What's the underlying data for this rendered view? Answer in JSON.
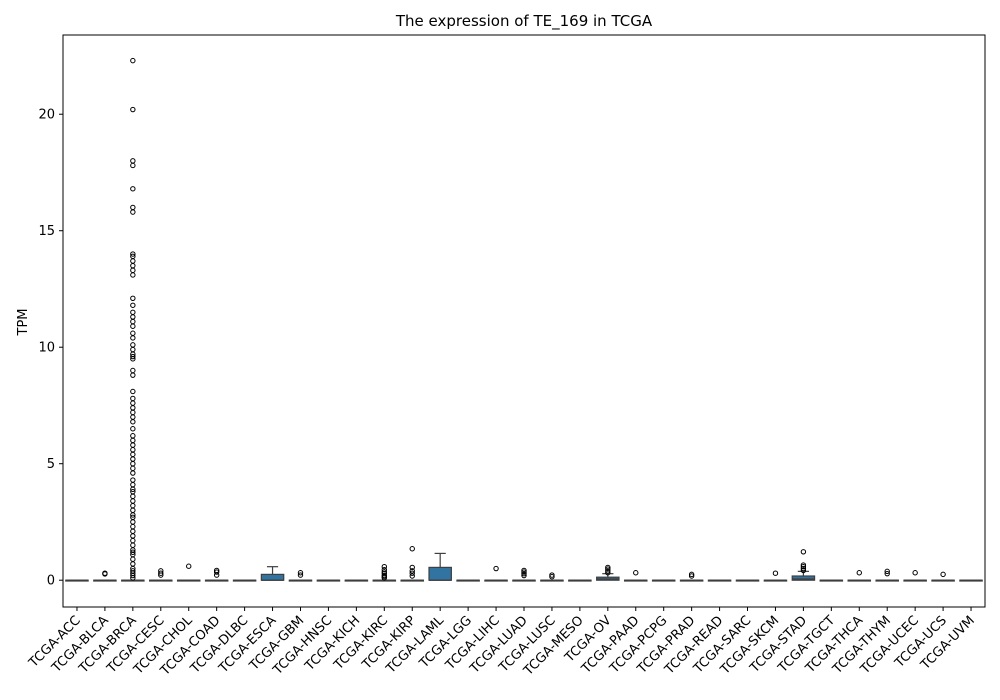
{
  "chart_data": {
    "type": "box",
    "title": "The expression of TE_169 in TCGA",
    "xlabel": "",
    "ylabel": "TPM",
    "ylim": [
      -1.15,
      23.4
    ],
    "yticks": [
      0,
      5,
      10,
      15,
      20
    ],
    "grid": false,
    "box_color": "#3274a1",
    "categories": [
      "TCGA-ACC",
      "TCGA-BLCA",
      "TCGA-BRCA",
      "TCGA-CESC",
      "TCGA-CHOL",
      "TCGA-COAD",
      "TCGA-DLBC",
      "TCGA-ESCA",
      "TCGA-GBM",
      "TCGA-HNSC",
      "TCGA-KICH",
      "TCGA-KIRC",
      "TCGA-KIRP",
      "TCGA-LAML",
      "TCGA-LGG",
      "TCGA-LIHC",
      "TCGA-LUAD",
      "TCGA-LUSC",
      "TCGA-MESO",
      "TCGA-OV",
      "TCGA-PAAD",
      "TCGA-PCPG",
      "TCGA-PRAD",
      "TCGA-READ",
      "TCGA-SARC",
      "TCGA-SKCM",
      "TCGA-STAD",
      "TCGA-TGCT",
      "TCGA-THCA",
      "TCGA-THYM",
      "TCGA-UCEC",
      "TCGA-UCS",
      "TCGA-UVM"
    ],
    "boxes": [
      {
        "q1": 0,
        "median": 0,
        "q3": 0,
        "whislo": 0,
        "whishi": 0,
        "outliers": []
      },
      {
        "q1": 0,
        "median": 0,
        "q3": 0,
        "whislo": 0,
        "whishi": 0,
        "outliers": [
          0.27,
          0.3
        ]
      },
      {
        "q1": 0,
        "median": 0,
        "q3": 0,
        "whislo": 0,
        "whishi": 0,
        "outliers": [
          22.3,
          20.2,
          18,
          17.8,
          16.8,
          16,
          15.8,
          14,
          13.9,
          13.7,
          13.5,
          13.3,
          13.1,
          12.1,
          11.8,
          11.5,
          11.3,
          11.1,
          10.9,
          10.6,
          10.4,
          10.1,
          9.9,
          9.7,
          9.6,
          9.5,
          9.0,
          8.8,
          8.1,
          7.8,
          7.6,
          7.4,
          7.2,
          7.0,
          6.8,
          6.5,
          6.2,
          6.0,
          5.8,
          5.6,
          5.4,
          5.2,
          5.0,
          4.8,
          4.6,
          4.3,
          4.1,
          3.9,
          3.8,
          3.6,
          3.4,
          3.2,
          3.0,
          2.8,
          2.7,
          2.5,
          2.3,
          2.1,
          1.9,
          1.7,
          1.5,
          1.3,
          1.2,
          1.1,
          0.9,
          0.7,
          0.5,
          0.4,
          0.3,
          0.2,
          0.1
        ]
      },
      {
        "q1": 0,
        "median": 0,
        "q3": 0,
        "whislo": 0,
        "whishi": 0,
        "outliers": [
          0.22,
          0.3,
          0.4
        ]
      },
      {
        "q1": 0,
        "median": 0,
        "q3": 0,
        "whislo": 0,
        "whishi": 0,
        "outliers": [
          0.6
        ]
      },
      {
        "q1": 0,
        "median": 0,
        "q3": 0,
        "whislo": 0,
        "whishi": 0,
        "outliers": [
          0.22,
          0.35,
          0.42
        ]
      },
      {
        "q1": 0,
        "median": 0,
        "q3": 0,
        "whislo": 0,
        "whishi": 0,
        "outliers": []
      },
      {
        "q1": 0,
        "median": 0,
        "q3": 0.25,
        "whislo": 0,
        "whishi": 0.58,
        "outliers": []
      },
      {
        "q1": 0,
        "median": 0,
        "q3": 0,
        "whislo": 0,
        "whishi": 0,
        "outliers": [
          0.22,
          0.32
        ]
      },
      {
        "q1": 0,
        "median": 0,
        "q3": 0,
        "whislo": 0,
        "whishi": 0,
        "outliers": []
      },
      {
        "q1": 0,
        "median": 0,
        "q3": 0,
        "whislo": 0,
        "whishi": 0,
        "outliers": []
      },
      {
        "q1": 0,
        "median": 0,
        "q3": 0,
        "whislo": 0,
        "whishi": 0,
        "outliers": [
          0.1,
          0.15,
          0.2,
          0.28,
          0.35,
          0.45,
          0.58
        ]
      },
      {
        "q1": 0,
        "median": 0,
        "q3": 0,
        "whislo": 0,
        "whishi": 0,
        "outliers": [
          0.18,
          0.3,
          0.4,
          0.55,
          1.35
        ]
      },
      {
        "q1": 0,
        "median": 0,
        "q3": 0.55,
        "whislo": 0,
        "whishi": 1.15,
        "outliers": []
      },
      {
        "q1": 0,
        "median": 0,
        "q3": 0,
        "whislo": 0,
        "whishi": 0,
        "outliers": []
      },
      {
        "q1": 0,
        "median": 0,
        "q3": 0,
        "whislo": 0,
        "whishi": 0,
        "outliers": [
          0.5
        ]
      },
      {
        "q1": 0,
        "median": 0,
        "q3": 0,
        "whislo": 0,
        "whishi": 0,
        "outliers": [
          0.2,
          0.28,
          0.35,
          0.42
        ]
      },
      {
        "q1": 0,
        "median": 0,
        "q3": 0,
        "whislo": 0,
        "whishi": 0,
        "outliers": [
          0.15,
          0.22
        ]
      },
      {
        "q1": 0,
        "median": 0,
        "q3": 0,
        "whislo": 0,
        "whishi": 0,
        "outliers": []
      },
      {
        "q1": 0,
        "median": 0.05,
        "q3": 0.13,
        "whislo": 0,
        "whishi": 0.28,
        "outliers": [
          0.32,
          0.4,
          0.48,
          0.55
        ]
      },
      {
        "q1": 0,
        "median": 0,
        "q3": 0,
        "whislo": 0,
        "whishi": 0,
        "outliers": [
          0.32
        ]
      },
      {
        "q1": 0,
        "median": 0,
        "q3": 0,
        "whislo": 0,
        "whishi": 0,
        "outliers": []
      },
      {
        "q1": 0,
        "median": 0,
        "q3": 0,
        "whislo": 0,
        "whishi": 0,
        "outliers": [
          0.18,
          0.25
        ]
      },
      {
        "q1": 0,
        "median": 0,
        "q3": 0,
        "whislo": 0,
        "whishi": 0,
        "outliers": []
      },
      {
        "q1": 0,
        "median": 0,
        "q3": 0,
        "whislo": 0,
        "whishi": 0,
        "outliers": []
      },
      {
        "q1": 0,
        "median": 0,
        "q3": 0,
        "whislo": 0,
        "whishi": 0,
        "outliers": [
          0.3
        ]
      },
      {
        "q1": 0,
        "median": 0.05,
        "q3": 0.18,
        "whislo": 0,
        "whishi": 0.38,
        "outliers": [
          0.42,
          0.5,
          0.58,
          0.65,
          1.22
        ]
      },
      {
        "q1": 0,
        "median": 0,
        "q3": 0,
        "whislo": 0,
        "whishi": 0,
        "outliers": []
      },
      {
        "q1": 0,
        "median": 0,
        "q3": 0,
        "whislo": 0,
        "whishi": 0,
        "outliers": [
          0.32
        ]
      },
      {
        "q1": 0,
        "median": 0,
        "q3": 0,
        "whislo": 0,
        "whishi": 0,
        "outliers": [
          0.28,
          0.38
        ]
      },
      {
        "q1": 0,
        "median": 0,
        "q3": 0,
        "whislo": 0,
        "whishi": 0,
        "outliers": [
          0.32
        ]
      },
      {
        "q1": 0,
        "median": 0,
        "q3": 0,
        "whislo": 0,
        "whishi": 0,
        "outliers": [
          0.25
        ]
      },
      {
        "q1": 0,
        "median": 0,
        "q3": 0,
        "whislo": 0,
        "whishi": 0,
        "outliers": []
      }
    ]
  }
}
